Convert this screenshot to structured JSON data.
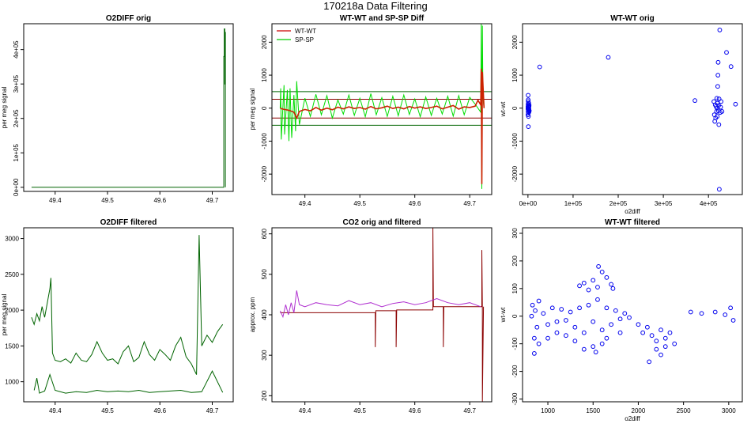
{
  "figure": {
    "title": "170218a   Data Filtering"
  },
  "chart_data": [
    {
      "id": "p1",
      "type": "line",
      "title": "O2DIFF orig",
      "xlabel": "",
      "ylabel": "per meg signal",
      "xlim": [
        49.34,
        49.74
      ],
      "ylim": [
        -12000,
        475000
      ],
      "xticks": [
        49.4,
        49.5,
        49.6,
        49.7
      ],
      "xtick_labels": [
        "49.4",
        "49.5",
        "49.6",
        "49.7"
      ],
      "yticks": [
        0,
        100000,
        200000,
        300000,
        400000
      ],
      "ytick_labels": [
        "0e+00",
        "1e+05",
        "2e+05",
        "3e+05",
        "4e+05"
      ],
      "ytick_rotate": true,
      "series": [
        {
          "name": "O2DIFF",
          "color": "#006400",
          "x": [
            49.355,
            49.72,
            49.722,
            49.722,
            49.723,
            49.723,
            49.724,
            49.724,
            49.7245,
            49.7245,
            49.725,
            49.725
          ],
          "y": [
            0,
            0,
            0,
            380000,
            380000,
            460000,
            460000,
            300000,
            300000,
            450000,
            450000,
            0
          ]
        }
      ]
    },
    {
      "id": "p2",
      "type": "line",
      "title": "WT-WT and SP-SP Diff",
      "xlabel": "",
      "ylabel": "per meg signal",
      "xlim": [
        49.34,
        49.74
      ],
      "ylim": [
        -2620,
        2560
      ],
      "xticks": [
        49.4,
        49.5,
        49.6,
        49.7
      ],
      "xtick_labels": [
        "49.4",
        "49.5",
        "49.6",
        "49.7"
      ],
      "yticks": [
        -2000,
        -1000,
        0,
        1000,
        2000
      ],
      "ytick_labels": [
        "-2000",
        "-1000",
        "0",
        "1000",
        "2000"
      ],
      "ytick_rotate": true,
      "legend": {
        "position": "top-left",
        "entries": [
          {
            "label": "WT-WT",
            "color": "#cc0000"
          },
          {
            "label": "SP-SP",
            "color": "#00cc00"
          }
        ]
      },
      "hlines": [
        {
          "y": 500,
          "color": "#006400"
        },
        {
          "y": 270,
          "color": "#8b0000"
        },
        {
          "y": -300,
          "color": "#8b0000"
        },
        {
          "y": -520,
          "color": "#006400"
        }
      ],
      "series": [
        {
          "name": "SP-SP",
          "color": "#00dd00",
          "x": [
            49.355,
            49.356,
            49.357,
            49.36,
            49.362,
            49.363,
            49.368,
            49.371,
            49.373,
            49.376,
            49.38,
            49.383,
            49.385,
            49.39,
            49.4,
            49.41,
            49.42,
            49.43,
            49.44,
            49.45,
            49.46,
            49.47,
            49.48,
            49.49,
            49.5,
            49.51,
            49.52,
            49.53,
            49.54,
            49.55,
            49.56,
            49.57,
            49.58,
            49.59,
            49.6,
            49.61,
            49.62,
            49.63,
            49.64,
            49.65,
            49.66,
            49.67,
            49.68,
            49.69,
            49.7,
            49.71,
            49.72,
            49.721,
            49.722,
            49.723,
            49.724,
            49.726
          ],
          "y": [
            0,
            600,
            -950,
            50,
            700,
            -800,
            550,
            -1000,
            600,
            -900,
            400,
            -700,
            820,
            -500,
            300,
            -250,
            420,
            -200,
            380,
            -300,
            250,
            -180,
            400,
            -220,
            300,
            -260,
            440,
            -200,
            320,
            -250,
            360,
            -230,
            400,
            -190,
            280,
            -260,
            340,
            -220,
            300,
            -180,
            360,
            -240,
            380,
            -200,
            330,
            120,
            -120,
            2550,
            -2450,
            2500,
            300,
            0
          ]
        },
        {
          "name": "WT-WT",
          "color": "#cc2200",
          "x": [
            49.355,
            49.36,
            49.37,
            49.38,
            49.385,
            49.39,
            49.4,
            49.41,
            49.42,
            49.43,
            49.44,
            49.45,
            49.46,
            49.47,
            49.48,
            49.49,
            49.5,
            49.51,
            49.52,
            49.53,
            49.54,
            49.55,
            49.56,
            49.57,
            49.58,
            49.59,
            49.6,
            49.61,
            49.62,
            49.63,
            49.64,
            49.65,
            49.66,
            49.67,
            49.68,
            49.69,
            49.7,
            49.71,
            49.715,
            49.72,
            49.721,
            49.722,
            49.723,
            49.726
          ],
          "y": [
            0,
            -30,
            -60,
            -120,
            -300,
            -100,
            -40,
            -80,
            20,
            -60,
            0,
            -50,
            30,
            -20,
            40,
            -10,
            20,
            -30,
            50,
            -20,
            10,
            60,
            -10,
            30,
            -20,
            50,
            0,
            40,
            -10,
            20,
            60,
            -20,
            30,
            80,
            -30,
            40,
            20,
            60,
            240,
            100,
            1200,
            -2300,
            1100,
            0
          ]
        }
      ]
    },
    {
      "id": "p3",
      "type": "scatter",
      "title": "WT-WT orig",
      "xlabel": "o2diff",
      "ylabel": "wt-wt",
      "xlim": [
        -12000,
        475000
      ],
      "ylim": [
        -2620,
        2560
      ],
      "xticks": [
        0,
        100000,
        200000,
        300000,
        400000
      ],
      "xtick_labels": [
        "0e+00",
        "1e+05",
        "2e+05",
        "3e+05",
        "4e+05"
      ],
      "yticks": [
        -2000,
        -1000,
        0,
        1000,
        2000
      ],
      "ytick_labels": [
        "-2000",
        "-1000",
        "0",
        "1000",
        "2000"
      ],
      "ytick_rotate": true,
      "series": [
        {
          "name": "points",
          "color": "#0000ee",
          "x": [
            20,
            80,
            150,
            300,
            500,
            700,
            900,
            1200,
            1500,
            1800,
            2100,
            2400,
            100,
            600,
            1100,
            1700,
            2200,
            400,
            900,
            1400,
            2000,
            2600,
            3000,
            200,
            26000,
            178000,
            370000,
            412000,
            413000,
            414000,
            415000,
            416000,
            417000,
            418000,
            418500,
            419000,
            419500,
            420000,
            420500,
            421000,
            421500,
            422000,
            422500,
            423000,
            423500,
            424000,
            425000,
            426000,
            427000,
            428000,
            430000,
            440000,
            450000,
            460000
          ],
          "y": [
            0,
            50,
            -30,
            120,
            -100,
            200,
            -150,
            80,
            -60,
            30,
            -20,
            60,
            -200,
            250,
            -250,
            150,
            -120,
            390,
            -560,
            20,
            -40,
            90,
            -80,
            -5,
            1250,
            1540,
            230,
            200,
            -200,
            -400,
            100,
            -300,
            50,
            -100,
            300,
            0,
            -250,
            150,
            660,
            1000,
            1390,
            -80,
            80,
            -500,
            280,
            -2460,
            2370,
            -130,
            30,
            200,
            -100,
            1690,
            1260,
            120
          ]
        }
      ]
    },
    {
      "id": "p4",
      "type": "line",
      "title": "O2DIFF filtered",
      "xlabel": "",
      "ylabel": "per meg signal",
      "xlim": [
        49.34,
        49.74
      ],
      "ylim": [
        720,
        3150
      ],
      "xticks": [
        49.4,
        49.5,
        49.6,
        49.7
      ],
      "xtick_labels": [
        "49.4",
        "49.5",
        "49.6",
        "49.7"
      ],
      "yticks": [
        1000,
        1500,
        2000,
        2500,
        3000
      ],
      "ytick_labels": [
        "1000",
        "1500",
        "2000",
        "2500",
        "3000"
      ],
      "ytick_rotate": false,
      "series": [
        {
          "name": "filtered",
          "color": "#006400",
          "x": [
            49.355,
            49.36,
            49.365,
            49.37,
            49.375,
            49.38,
            49.385,
            49.39,
            49.392,
            49.395,
            49.4,
            49.41,
            49.42,
            49.43,
            49.44,
            49.45,
            49.46,
            49.47,
            49.48,
            49.49,
            49.5,
            49.51,
            49.52,
            49.53,
            49.54,
            49.55,
            49.56,
            49.57,
            49.58,
            49.59,
            49.6,
            49.61,
            49.62,
            49.63,
            49.64,
            49.65,
            49.66,
            49.67,
            49.675,
            49.68,
            49.69,
            49.7,
            49.71,
            49.72
          ],
          "y": [
            1900,
            1800,
            1950,
            1850,
            2050,
            1900,
            2100,
            2300,
            2450,
            1400,
            1300,
            1280,
            1320,
            1260,
            1400,
            1300,
            1280,
            1380,
            1560,
            1400,
            1300,
            1320,
            1250,
            1420,
            1500,
            1280,
            1340,
            1560,
            1380,
            1300,
            1450,
            1380,
            1300,
            1500,
            1620,
            1350,
            1250,
            1100,
            3050,
            1500,
            1650,
            1550,
            1700,
            1800
          ]
        },
        {
          "name": "gaps",
          "color": "#006400",
          "x": [
            49.36,
            49.365,
            49.37,
            49.38,
            49.39,
            49.4,
            49.42,
            49.44,
            49.46,
            49.48,
            49.5,
            49.52,
            49.54,
            49.56,
            49.58,
            49.6,
            49.62,
            49.64,
            49.66,
            49.68,
            49.7,
            49.72
          ],
          "y": [
            880,
            1050,
            840,
            870,
            1100,
            880,
            840,
            860,
            850,
            880,
            860,
            870,
            860,
            880,
            850,
            860,
            870,
            880,
            850,
            860,
            1150,
            850
          ]
        }
      ]
    },
    {
      "id": "p5",
      "type": "line",
      "title": "CO2 orig and filtered",
      "xlabel": "",
      "ylabel": "approx. ppm",
      "xlim": [
        49.34,
        49.74
      ],
      "ylim": [
        185,
        615
      ],
      "xticks": [
        49.4,
        49.5,
        49.6,
        49.7
      ],
      "xtick_labels": [
        "49.4",
        "49.5",
        "49.6",
        "49.7"
      ],
      "yticks": [
        200,
        300,
        400,
        500,
        600
      ],
      "ytick_labels": [
        "200",
        "300",
        "400",
        "500",
        "600"
      ],
      "ytick_rotate": true,
      "series": [
        {
          "name": "CO2 orig",
          "color": "#8b0000",
          "x": [
            49.355,
            49.528,
            49.528,
            49.529,
            49.566,
            49.566,
            49.567,
            49.633,
            49.633,
            49.634,
            49.652,
            49.652,
            49.653,
            49.72,
            49.722,
            49.722,
            49.723,
            49.723,
            49.725
          ],
          "y": [
            405,
            405,
            320,
            410,
            410,
            320,
            412,
            412,
            615,
            420,
            420,
            320,
            420,
            420,
            420,
            560,
            420,
            185,
            420
          ]
        },
        {
          "name": "CO2 filtered",
          "color": "#b030d0",
          "x": [
            49.355,
            49.36,
            49.365,
            49.37,
            49.375,
            49.38,
            49.385,
            49.39,
            49.4,
            49.42,
            49.44,
            49.46,
            49.48,
            49.5,
            49.52,
            49.54,
            49.56,
            49.58,
            49.6,
            49.62,
            49.64,
            49.66,
            49.68,
            49.7,
            49.72
          ],
          "y": [
            410,
            395,
            425,
            400,
            430,
            405,
            460,
            425,
            420,
            430,
            425,
            422,
            435,
            425,
            430,
            420,
            428,
            432,
            425,
            430,
            440,
            430,
            425,
            430,
            420
          ]
        }
      ]
    },
    {
      "id": "p6",
      "type": "scatter",
      "title": "WT-WT filtered",
      "xlabel": "o2diff",
      "ylabel": "wt-wt",
      "xlim": [
        720,
        3150
      ],
      "ylim": [
        -310,
        320
      ],
      "xticks": [
        1000,
        1500,
        2000,
        2500,
        3000
      ],
      "xtick_labels": [
        "1000",
        "1500",
        "2000",
        "2500",
        "3000"
      ],
      "yticks": [
        -300,
        -200,
        -100,
        0,
        100,
        200,
        300
      ],
      "ytick_labels": [
        "-300",
        "-200",
        "-100",
        "0",
        "100",
        "200",
        "300"
      ],
      "ytick_rotate": true,
      "series": [
        {
          "name": "points",
          "color": "#0000ee",
          "x": [
            820,
            830,
            850,
            860,
            880,
            900,
            950,
            1000,
            1050,
            1100,
            1150,
            1200,
            1250,
            1300,
            1350,
            1400,
            1450,
            1500,
            1550,
            1600,
            1650,
            1700,
            1750,
            1800,
            1850,
            1900,
            1350,
            1400,
            1450,
            1500,
            1550,
            1600,
            1650,
            1700,
            1300,
            1500,
            1600,
            1200,
            1100,
            1400,
            1560,
            1720,
            1530,
            1650,
            2000,
            2050,
            2100,
            2150,
            2200,
            2250,
            2300,
            2350,
            2400,
            2200,
            2250,
            2300,
            2120,
            2580,
            2700,
            2850,
            2960,
            3020,
            3050,
            850,
            900,
            1000,
            1800
          ],
          "y": [
            0,
            40,
            -80,
            20,
            -40,
            55,
            10,
            -30,
            30,
            -20,
            25,
            -15,
            15,
            -40,
            30,
            -60,
            40,
            -20,
            60,
            -50,
            30,
            -30,
            20,
            -10,
            10,
            -5,
            110,
            120,
            95,
            130,
            105,
            160,
            140,
            115,
            -90,
            -110,
            -100,
            -70,
            -60,
            -120,
            180,
            100,
            -130,
            -80,
            -30,
            -60,
            -40,
            -70,
            -90,
            -50,
            -80,
            -60,
            -100,
            -120,
            -140,
            -110,
            -165,
            15,
            10,
            15,
            5,
            30,
            -15,
            -135,
            -100,
            -80,
            -60
          ]
        }
      ]
    }
  ]
}
